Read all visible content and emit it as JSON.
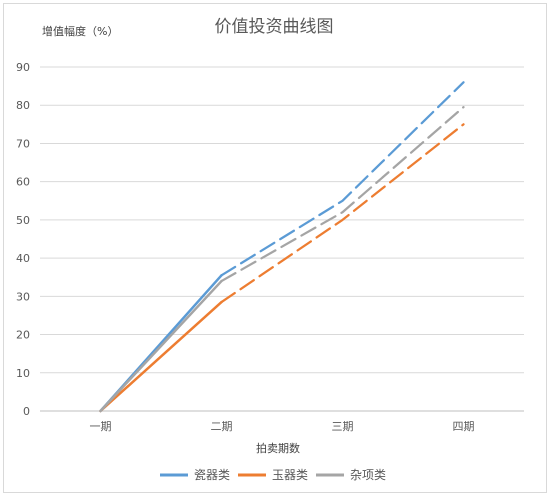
{
  "chart_data": {
    "type": "line",
    "title": "价值投资曲线图",
    "ylabel": "增值幅度（%）",
    "xlabel": "拍卖期数",
    "categories": [
      "一期",
      "二期",
      "三期",
      "四期"
    ],
    "ylim": [
      0,
      90
    ],
    "yticks": [
      0,
      10,
      20,
      30,
      40,
      50,
      60,
      70,
      80,
      90
    ],
    "grid": true,
    "legend_position": "bottom",
    "series": [
      {
        "name": "瓷器类",
        "values": [
          0,
          35.5,
          55,
          86
        ],
        "color": "#5b9bd5",
        "line_style": "solid then dashed after 二期"
      },
      {
        "name": "玉器类",
        "values": [
          0,
          28.5,
          50,
          75
        ],
        "color": "#ed7d31",
        "line_style": "solid then dashed after 二期"
      },
      {
        "name": "杂项类",
        "values": [
          0,
          34,
          52,
          79.5
        ],
        "color": "#a5a5a5",
        "line_style": "solid then dashed after 二期"
      }
    ]
  }
}
